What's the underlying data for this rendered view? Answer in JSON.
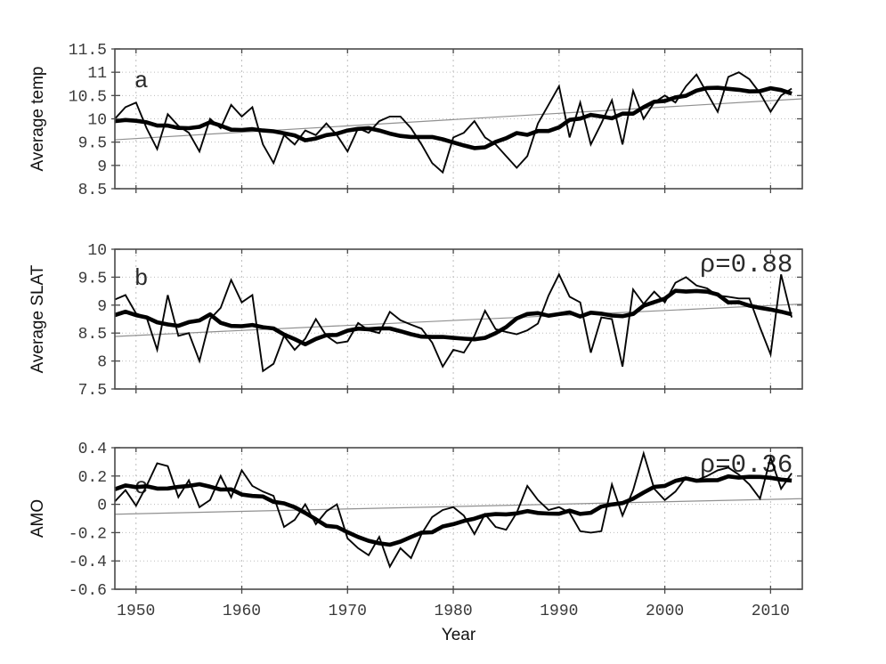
{
  "figure": {
    "background": "#ffffff",
    "colors": {
      "annual_line": "#050505",
      "smoothed_line": "#000000",
      "trend_line": "#909090",
      "frame": "#4a4a4a",
      "grid": "#bdbdbd",
      "tick_label": "#3a3a3a",
      "axis_label": "#111111",
      "annotation": "#2a2a2a"
    }
  },
  "chart_data": {
    "type": "line",
    "title": "",
    "xlabel": "Year",
    "xlim": [
      1948,
      2013
    ],
    "xticks": [
      1950,
      1960,
      1970,
      1980,
      1990,
      2000,
      2010
    ],
    "xtick_labels": [
      "1950",
      "1960",
      "1970",
      "1980",
      "1990",
      "2000",
      "2010"
    ],
    "grid": true,
    "legend": "none",
    "smoothing": {
      "method": "centered moving average",
      "window": 9
    },
    "x": [
      1948,
      1949,
      1950,
      1951,
      1952,
      1953,
      1954,
      1955,
      1956,
      1957,
      1958,
      1959,
      1960,
      1961,
      1962,
      1963,
      1964,
      1965,
      1966,
      1967,
      1968,
      1969,
      1970,
      1971,
      1972,
      1973,
      1974,
      1975,
      1976,
      1977,
      1978,
      1979,
      1980,
      1981,
      1982,
      1983,
      1984,
      1985,
      1986,
      1987,
      1988,
      1989,
      1990,
      1991,
      1992,
      1993,
      1994,
      1995,
      1996,
      1997,
      1998,
      1999,
      2000,
      2001,
      2002,
      2003,
      2004,
      2005,
      2006,
      2007,
      2008,
      2009,
      2010,
      2011,
      2012
    ],
    "panels": [
      {
        "id": "a",
        "letter": "a",
        "letter_pos": {
          "x": 1950.5,
          "y": 10.68
        },
        "ylabel": "Average temp",
        "ylim": [
          8.5,
          11.5
        ],
        "yticks": [
          8.5,
          9,
          9.5,
          10,
          10.5,
          11,
          11.5
        ],
        "ytick_labels": [
          "8.5",
          "9",
          "9.5",
          "10",
          "10.5",
          "11",
          "11.5"
        ],
        "annotation": null,
        "series": [
          {
            "name": "annual",
            "style": "thin-black",
            "values": [
              10.0,
              10.25,
              10.35,
              9.8,
              9.35,
              10.1,
              9.85,
              9.7,
              9.3,
              10.0,
              9.8,
              10.3,
              10.05,
              10.25,
              9.45,
              9.05,
              9.65,
              9.45,
              9.75,
              9.65,
              9.9,
              9.65,
              9.3,
              9.8,
              9.7,
              9.95,
              10.05,
              10.05,
              9.8,
              9.45,
              9.05,
              8.85,
              9.6,
              9.7,
              9.95,
              9.6,
              9.45,
              9.2,
              8.95,
              9.2,
              9.9,
              10.3,
              10.7,
              9.6,
              10.35,
              9.45,
              9.9,
              10.4,
              9.45,
              10.6,
              10.0,
              10.35,
              10.5,
              10.35,
              10.7,
              10.95,
              10.55,
              10.15,
              10.9,
              11.0,
              10.85,
              10.55,
              10.15,
              10.5,
              10.65
            ]
          },
          {
            "name": "smoothed",
            "style": "thick-black",
            "derived_from": "annual",
            "window": 9
          },
          {
            "name": "linear trend",
            "style": "thin-gray",
            "x": [
              1948,
              2013
            ],
            "y": [
              9.55,
              10.43
            ]
          }
        ]
      },
      {
        "id": "b",
        "letter": "b",
        "letter_pos": {
          "x": 1950.5,
          "y": 9.36
        },
        "ylabel": "Average SLAT",
        "ylim": [
          7.5,
          10
        ],
        "yticks": [
          7.5,
          8,
          8.5,
          9,
          9.5,
          10
        ],
        "ytick_labels": [
          "7.5",
          "8",
          "8.5",
          "9",
          "9.5",
          "10"
        ],
        "annotation": {
          "text": "ρ=0.88",
          "x": 2012.1,
          "y": 9.6,
          "anchor": "end"
        },
        "series": [
          {
            "name": "annual",
            "style": "thin-black",
            "values": [
              9.1,
              9.18,
              8.85,
              8.78,
              8.2,
              9.18,
              8.45,
              8.5,
              8.0,
              8.75,
              8.95,
              9.45,
              9.05,
              9.18,
              7.82,
              7.95,
              8.45,
              8.2,
              8.4,
              8.75,
              8.45,
              8.32,
              8.35,
              8.68,
              8.55,
              8.5,
              8.88,
              8.73,
              8.65,
              8.58,
              8.33,
              7.9,
              8.2,
              8.15,
              8.45,
              8.9,
              8.57,
              8.52,
              8.48,
              8.55,
              8.67,
              9.17,
              9.55,
              9.15,
              9.05,
              8.15,
              8.78,
              8.75,
              7.9,
              9.28,
              9.02,
              9.24,
              9.05,
              9.4,
              9.5,
              9.35,
              9.3,
              9.17,
              9.15,
              9.12,
              9.12,
              8.6,
              8.12,
              9.55,
              8.78
            ]
          },
          {
            "name": "smoothed",
            "style": "thick-black",
            "derived_from": "annual",
            "window": 9
          },
          {
            "name": "linear trend",
            "style": "thin-gray",
            "x": [
              1948,
              2013
            ],
            "y": [
              8.44,
              9.02
            ]
          }
        ]
      },
      {
        "id": "c",
        "letter": "c",
        "letter_pos": {
          "x": 1950.5,
          "y": 0.08
        },
        "ylabel": "AMO",
        "ylim": [
          -0.6,
          0.4
        ],
        "yticks": [
          -0.6,
          -0.4,
          -0.2,
          0,
          0.2,
          0.4
        ],
        "ytick_labels": [
          "-0.6",
          "-0.4",
          "-0.2",
          "0",
          "0.2",
          "0.4"
        ],
        "annotation": {
          "text": "ρ=0.36",
          "x": 2012.1,
          "y": 0.23,
          "anchor": "end"
        },
        "series": [
          {
            "name": "annual",
            "style": "thin-black",
            "values": [
              0.02,
              0.1,
              -0.01,
              0.13,
              0.29,
              0.27,
              0.05,
              0.17,
              -0.02,
              0.03,
              0.2,
              0.05,
              0.24,
              0.13,
              0.09,
              0.06,
              -0.16,
              -0.11,
              0.0,
              -0.14,
              -0.05,
              0.0,
              -0.24,
              -0.31,
              -0.36,
              -0.23,
              -0.44,
              -0.31,
              -0.38,
              -0.21,
              -0.09,
              -0.04,
              -0.02,
              -0.08,
              -0.21,
              -0.07,
              -0.16,
              -0.18,
              -0.06,
              0.13,
              0.03,
              -0.04,
              -0.02,
              -0.06,
              -0.19,
              -0.2,
              -0.19,
              0.14,
              -0.08,
              0.1,
              0.36,
              0.11,
              0.03,
              0.09,
              0.19,
              0.17,
              0.2,
              0.24,
              0.26,
              0.21,
              0.14,
              0.04,
              0.33,
              0.11,
              0.22
            ]
          },
          {
            "name": "smoothed",
            "style": "thick-black",
            "derived_from": "annual",
            "window": 9
          },
          {
            "name": "linear trend",
            "style": "thin-gray",
            "x": [
              1948,
              2013
            ],
            "y": [
              -0.07,
              0.04
            ]
          }
        ]
      }
    ]
  }
}
